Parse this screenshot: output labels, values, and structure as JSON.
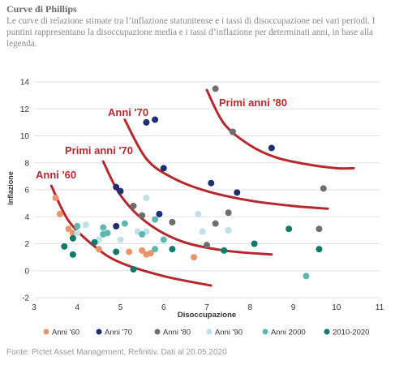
{
  "title": "Curve di Phillips",
  "subtitle": "Le curve di relazione stimate tra l’inflazione statunitense e i tassi di disoccupazione nei vari periodi. I puntini rappresentano la disoccupazione media e i tassi d’inflazione per determinati anni, in base alla legenda.",
  "source": "Fonte: Pictet Asset Management, Refinitiv. Dati al 20.05.2020",
  "colors": {
    "curve": "#b5292e",
    "axis_text": "#333333",
    "grid": "#e2e2e2"
  },
  "chart_data": {
    "type": "scatter",
    "xlabel": "Disoccupazione",
    "ylabel": "Inflazione",
    "xlim": [
      3,
      11
    ],
    "ylim": [
      -2,
      14
    ],
    "x_ticks": [
      "3",
      "4",
      "5",
      "6",
      "7",
      "8",
      "9",
      "10",
      "11"
    ],
    "y_ticks": [
      "-2",
      "0",
      "2",
      "4",
      "6",
      "8",
      "10",
      "12",
      "14"
    ],
    "grid": "horizontal",
    "legend_position": "bottom",
    "series": [
      {
        "name": "Anni '60",
        "color": "#e8956a",
        "points": [
          [
            3.5,
            5.4
          ],
          [
            3.6,
            4.2
          ],
          [
            3.8,
            3.1
          ],
          [
            3.9,
            2.8
          ],
          [
            4.5,
            1.6
          ],
          [
            5.5,
            1.5
          ],
          [
            5.6,
            1.2
          ],
          [
            5.7,
            1.3
          ],
          [
            5.2,
            1.4
          ],
          [
            6.7,
            1.0
          ]
        ]
      },
      {
        "name": "Anni '70",
        "color": "#1d2f6f",
        "points": [
          [
            4.9,
            6.2
          ],
          [
            5.0,
            5.9
          ],
          [
            5.6,
            11.0
          ],
          [
            5.8,
            11.2
          ],
          [
            6.0,
            7.6
          ],
          [
            5.9,
            4.2
          ],
          [
            7.1,
            6.5
          ],
          [
            7.7,
            5.8
          ],
          [
            8.5,
            9.1
          ],
          [
            4.9,
            3.3
          ]
        ]
      },
      {
        "name": "Anni '80",
        "color": "#6e6e6e",
        "points": [
          [
            7.2,
            13.5
          ],
          [
            7.6,
            10.3
          ],
          [
            9.7,
            6.1
          ],
          [
            9.6,
            3.1
          ],
          [
            7.5,
            4.3
          ],
          [
            7.2,
            3.5
          ],
          [
            7.0,
            1.9
          ],
          [
            6.2,
            3.6
          ],
          [
            5.5,
            4.1
          ],
          [
            5.3,
            4.8
          ]
        ]
      },
      {
        "name": "Anni '90",
        "color": "#bfe0e4",
        "points": [
          [
            5.6,
            5.4
          ],
          [
            6.8,
            4.2
          ],
          [
            6.9,
            2.9
          ],
          [
            7.5,
            3.0
          ],
          [
            5.6,
            2.9
          ],
          [
            5.4,
            2.9
          ],
          [
            5.0,
            2.3
          ],
          [
            4.5,
            2.3
          ],
          [
            4.0,
            2.8
          ],
          [
            4.2,
            3.4
          ]
        ]
      },
      {
        "name": "Anni 2000",
        "color": "#5fb8ae",
        "points": [
          [
            4.0,
            3.3
          ],
          [
            4.7,
            2.8
          ],
          [
            5.8,
            3.8
          ],
          [
            6.0,
            2.3
          ],
          [
            5.5,
            2.7
          ],
          [
            4.6,
            3.2
          ],
          [
            4.6,
            2.7
          ],
          [
            5.1,
            3.5
          ],
          [
            5.8,
            1.6
          ],
          [
            9.3,
            -0.4
          ]
        ]
      },
      {
        "name": "2010-2020",
        "color": "#0d7a6a",
        "points": [
          [
            3.7,
            1.8
          ],
          [
            3.9,
            1.2
          ],
          [
            4.4,
            2.1
          ],
          [
            4.9,
            1.4
          ],
          [
            5.3,
            0.1
          ],
          [
            6.2,
            1.6
          ],
          [
            7.4,
            1.5
          ],
          [
            8.1,
            2.0
          ],
          [
            8.9,
            3.1
          ],
          [
            9.6,
            1.6
          ],
          [
            3.9,
            2.4
          ]
        ]
      }
    ],
    "curves": [
      {
        "label": "Anni '60",
        "points": [
          [
            3.4,
            6.3
          ],
          [
            3.8,
            3.7
          ],
          [
            4.4,
            1.8
          ],
          [
            5.0,
            0.6
          ],
          [
            6.0,
            -0.4
          ],
          [
            7.1,
            -1.1
          ]
        ]
      },
      {
        "label": "Primi anni '70",
        "points": [
          [
            4.6,
            8.1
          ],
          [
            5.0,
            5.6
          ],
          [
            5.6,
            3.6
          ],
          [
            6.4,
            2.2
          ],
          [
            7.4,
            1.5
          ],
          [
            8.5,
            1.2
          ]
        ]
      },
      {
        "label": "Anni '70",
        "points": [
          [
            5.1,
            11.2
          ],
          [
            5.6,
            8.3
          ],
          [
            6.2,
            6.9
          ],
          [
            7.0,
            5.9
          ],
          [
            8.0,
            5.2
          ],
          [
            9.0,
            4.8
          ],
          [
            9.8,
            4.6
          ]
        ]
      },
      {
        "label": "Primi anni '80",
        "points": [
          [
            7.0,
            13.4
          ],
          [
            7.4,
            10.9
          ],
          [
            8.0,
            9.3
          ],
          [
            8.6,
            8.4
          ],
          [
            9.3,
            7.9
          ],
          [
            10.0,
            7.6
          ],
          [
            10.4,
            7.6
          ]
        ]
      }
    ]
  }
}
